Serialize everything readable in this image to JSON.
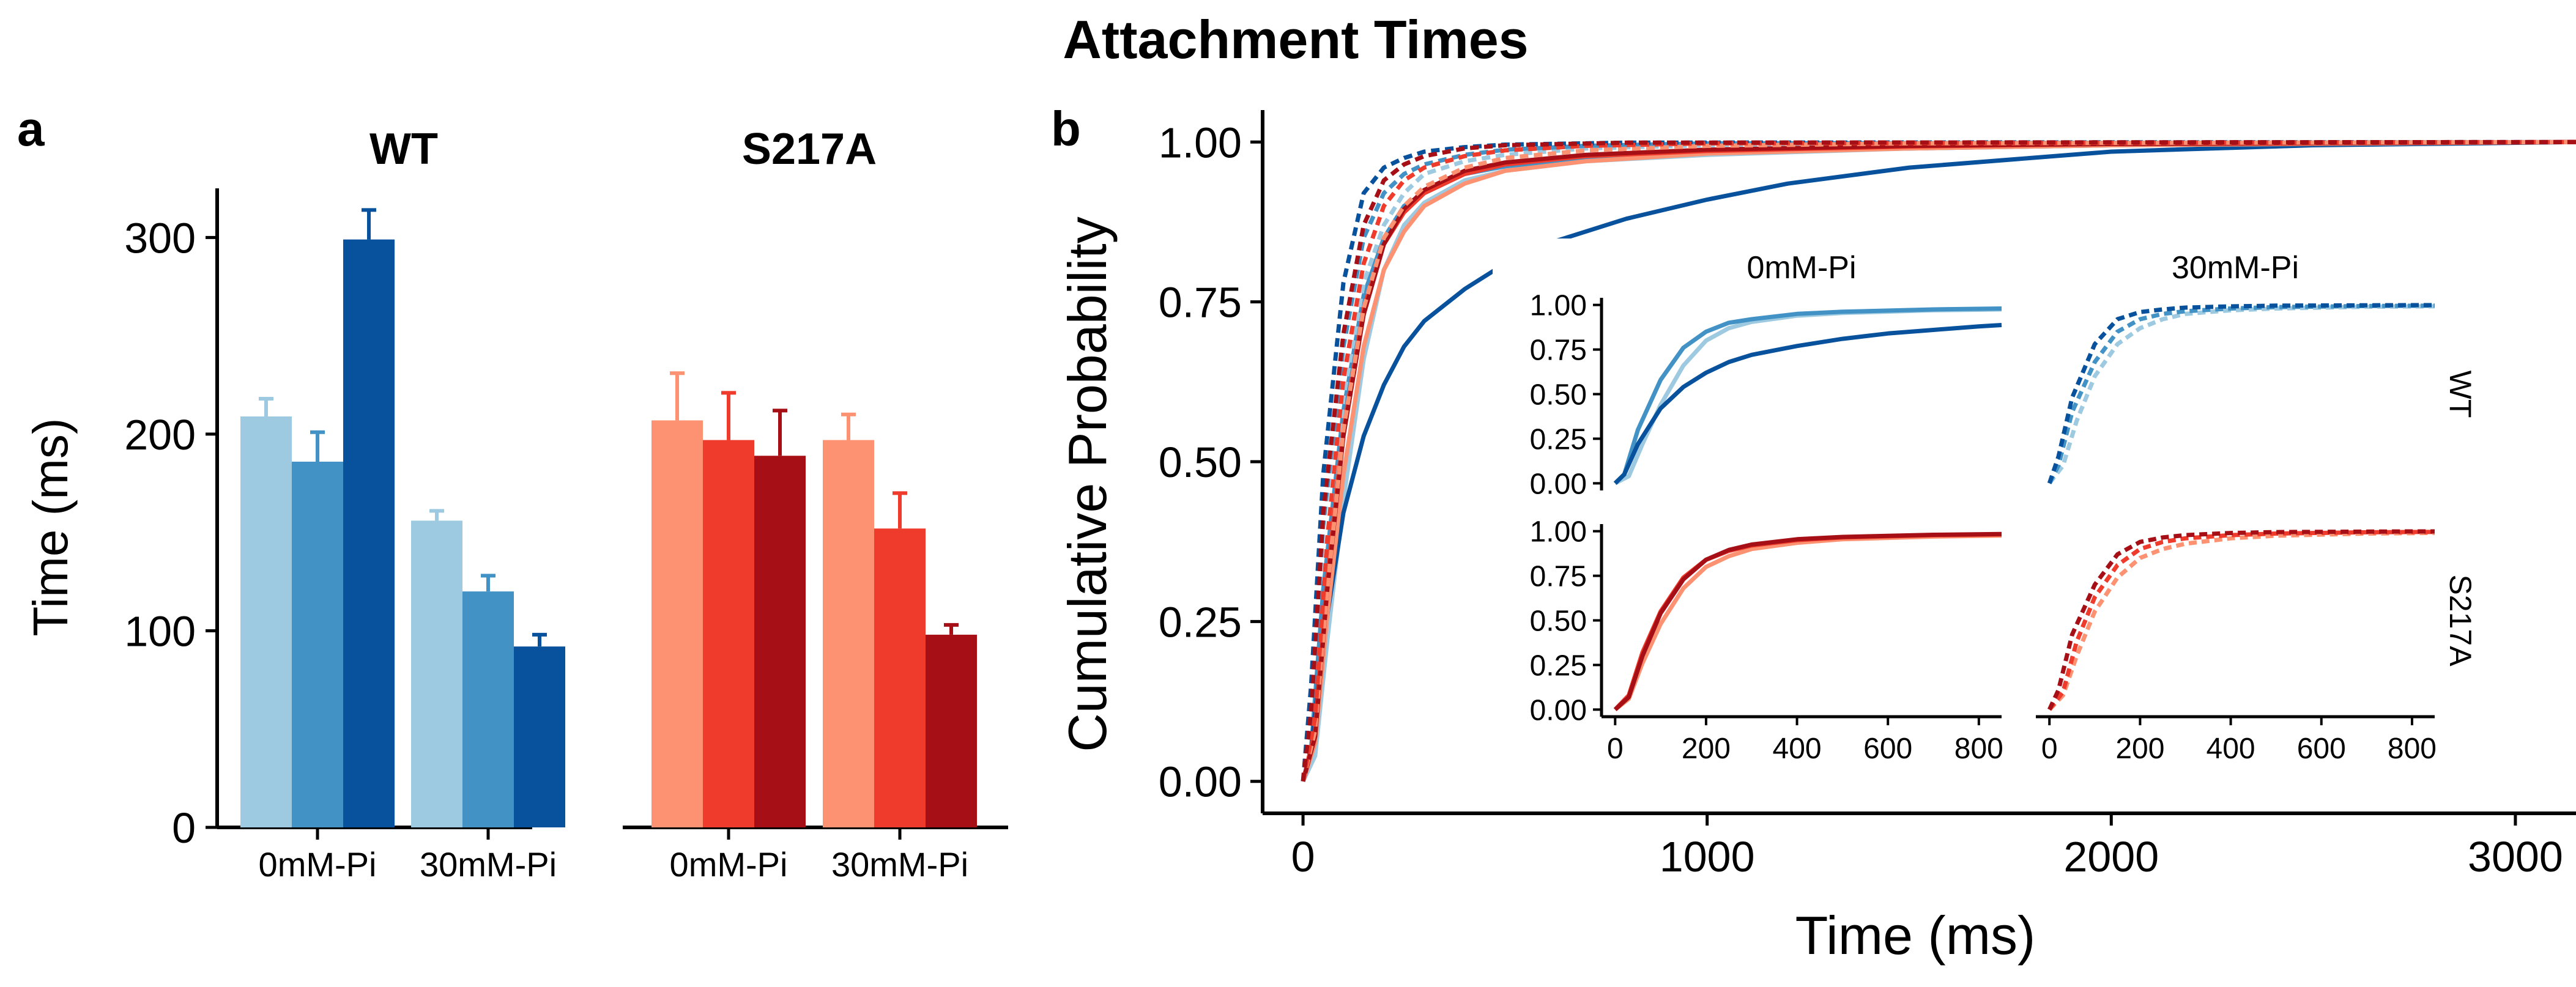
{
  "chart_data": {
    "title": "Attachment Times",
    "panels": [
      {
        "label": "a",
        "type": "bar",
        "ylabel": "Time (ms)",
        "ylim": [
          0,
          325
        ],
        "yticks": [
          0,
          100,
          200,
          300
        ],
        "facets": [
          {
            "title": "WT",
            "categories": [
              "0mM-Pi",
              "30mM-Pi"
            ],
            "bars_per_group": 3,
            "colors": [
              "#9ecae1",
              "#4292c6",
              "#08519c"
            ],
            "values": [
              [
                209,
                186,
                299
              ],
              [
                156,
                120,
                92
              ]
            ],
            "errors": [
              [
                9,
                15,
                15
              ],
              [
                5,
                8,
                6
              ]
            ]
          },
          {
            "title": "S217A",
            "categories": [
              "0mM-Pi",
              "30mM-Pi"
            ],
            "bars_per_group": 3,
            "colors": [
              "#fc9272",
              "#ef3b2c",
              "#a50f15"
            ],
            "values": [
              [
                207,
                197,
                189
              ],
              [
                197,
                152,
                98
              ]
            ],
            "errors": [
              [
                24,
                24,
                23
              ],
              [
                13,
                18,
                5
              ]
            ]
          }
        ]
      },
      {
        "label": "b",
        "type": "line",
        "xlabel": "Time (ms)",
        "ylabel": "Cumulative Probability",
        "xlim": [
          -100,
          3150
        ],
        "ylim": [
          -0.05,
          1.05
        ],
        "xticks": [
          0,
          1000,
          2000,
          3000
        ],
        "yticks": [
          0.0,
          0.25,
          0.5,
          0.75,
          1.0
        ],
        "ytick_labels": [
          "0.00",
          "0.25",
          "0.50",
          "0.75",
          "1.00"
        ],
        "series": [
          {
            "group": "WT",
            "pi": "0mM-Pi",
            "color": "#9ecae1",
            "dashed": false,
            "x": [
              0,
              30,
              60,
              100,
              150,
              200,
              250,
              300,
              400,
              500,
              700,
              1000,
              1500,
              2000,
              3150
            ],
            "y": [
              0,
              0.04,
              0.22,
              0.44,
              0.66,
              0.8,
              0.87,
              0.905,
              0.94,
              0.955,
              0.97,
              0.98,
              0.99,
              0.995,
              1
            ]
          },
          {
            "group": "WT",
            "pi": "0mM-Pi",
            "color": "#4292c6",
            "dashed": false,
            "x": [
              0,
              20,
              50,
              100,
              150,
              200,
              250,
              300,
              400,
              500,
              700,
              1000,
              1500,
              2000,
              3150
            ],
            "y": [
              0,
              0.05,
              0.3,
              0.58,
              0.76,
              0.85,
              0.9,
              0.92,
              0.95,
              0.962,
              0.975,
              0.985,
              0.99,
              0.995,
              1
            ]
          },
          {
            "group": "WT",
            "pi": "0mM-Pi",
            "color": "#08519c",
            "dashed": false,
            "x": [
              0,
              20,
              50,
              100,
              150,
              200,
              250,
              300,
              400,
              500,
              600,
              700,
              800,
              1000,
              1200,
              1500,
              1800,
              2000,
              2500,
              3150
            ],
            "y": [
              0,
              0.05,
              0.22,
              0.42,
              0.54,
              0.62,
              0.68,
              0.72,
              0.77,
              0.81,
              0.84,
              0.86,
              0.88,
              0.91,
              0.935,
              0.96,
              0.975,
              0.985,
              0.995,
              1
            ]
          },
          {
            "group": "WT",
            "pi": "30mM-Pi",
            "color": "#9ecae1",
            "dashed": true,
            "x": [
              0,
              30,
              60,
              100,
              150,
              200,
              250,
              300,
              400,
              500,
              700,
              1000,
              1500,
              3150
            ],
            "y": [
              0,
              0.1,
              0.35,
              0.6,
              0.78,
              0.87,
              0.92,
              0.95,
              0.97,
              0.98,
              0.99,
              0.995,
              0.998,
              1
            ]
          },
          {
            "group": "WT",
            "pi": "30mM-Pi",
            "color": "#4292c6",
            "dashed": true,
            "x": [
              0,
              20,
              50,
              100,
              150,
              200,
              250,
              300,
              400,
              500,
              700,
              1000,
              3150
            ],
            "y": [
              0,
              0.1,
              0.4,
              0.68,
              0.85,
              0.92,
              0.95,
              0.965,
              0.98,
              0.988,
              0.994,
              0.998,
              1
            ]
          },
          {
            "group": "WT",
            "pi": "30mM-Pi",
            "color": "#08519c",
            "dashed": true,
            "x": [
              0,
              20,
              50,
              100,
              150,
              200,
              250,
              300,
              400,
              500,
              800,
              3150
            ],
            "y": [
              0,
              0.15,
              0.48,
              0.78,
              0.92,
              0.96,
              0.975,
              0.985,
              0.992,
              0.996,
              0.999,
              1
            ]
          },
          {
            "group": "S217A",
            "pi": "0mM-Pi",
            "color": "#fc9272",
            "dashed": false,
            "x": [
              0,
              30,
              60,
              100,
              150,
              200,
              250,
              300,
              400,
              500,
              700,
              1000,
              1500,
              2000,
              3150
            ],
            "y": [
              0,
              0.06,
              0.26,
              0.48,
              0.68,
              0.8,
              0.86,
              0.9,
              0.935,
              0.955,
              0.97,
              0.982,
              0.99,
              0.995,
              1
            ]
          },
          {
            "group": "S217A",
            "pi": "0mM-Pi",
            "color": "#ef3b2c",
            "dashed": false,
            "x": [
              0,
              30,
              60,
              100,
              150,
              200,
              250,
              300,
              400,
              500,
              700,
              1000,
              1500,
              2000,
              3150
            ],
            "y": [
              0,
              0.08,
              0.32,
              0.55,
              0.74,
              0.84,
              0.89,
              0.92,
              0.95,
              0.965,
              0.978,
              0.986,
              0.993,
              0.997,
              1
            ]
          },
          {
            "group": "S217A",
            "pi": "0mM-Pi",
            "color": "#a50f15",
            "dashed": false,
            "x": [
              0,
              30,
              60,
              100,
              150,
              200,
              250,
              300,
              400,
              500,
              700,
              1000,
              1500,
              2000,
              3150
            ],
            "y": [
              0,
              0.07,
              0.3,
              0.54,
              0.73,
              0.84,
              0.895,
              0.925,
              0.955,
              0.968,
              0.98,
              0.988,
              0.994,
              0.997,
              1
            ]
          },
          {
            "group": "S217A",
            "pi": "30mM-Pi",
            "color": "#fc9272",
            "dashed": true,
            "x": [
              0,
              30,
              60,
              100,
              150,
              200,
              250,
              300,
              400,
              500,
              700,
              1000,
              1500,
              3150
            ],
            "y": [
              0,
              0.08,
              0.3,
              0.55,
              0.74,
              0.85,
              0.9,
              0.93,
              0.96,
              0.975,
              0.987,
              0.994,
              0.998,
              1
            ]
          },
          {
            "group": "S217A",
            "pi": "30mM-Pi",
            "color": "#ef3b2c",
            "dashed": true,
            "x": [
              0,
              30,
              60,
              100,
              150,
              200,
              250,
              300,
              400,
              500,
              700,
              1000,
              3150
            ],
            "y": [
              0,
              0.1,
              0.38,
              0.63,
              0.81,
              0.9,
              0.94,
              0.96,
              0.978,
              0.987,
              0.994,
              0.998,
              1
            ]
          },
          {
            "group": "S217A",
            "pi": "30mM-Pi",
            "color": "#a50f15",
            "dashed": true,
            "x": [
              0,
              20,
              50,
              100,
              150,
              200,
              250,
              300,
              400,
              500,
              800,
              3150
            ],
            "y": [
              0,
              0.11,
              0.42,
              0.7,
              0.87,
              0.94,
              0.965,
              0.978,
              0.99,
              0.995,
              0.999,
              1
            ]
          }
        ],
        "inset": {
          "col_labels": [
            "0mM-Pi",
            "30mM-Pi"
          ],
          "row_labels": [
            "WT",
            "S217A"
          ],
          "xlim": [
            -30,
            850
          ],
          "ylim": [
            -0.04,
            1.04
          ],
          "xticks": [
            0,
            200,
            400,
            600,
            800
          ],
          "yticks": [
            0,
            0.25,
            0.5,
            0.75,
            1
          ],
          "ytick_labels": [
            "0.00",
            "0.25",
            "0.50",
            "0.75",
            "1.00"
          ]
        }
      }
    ]
  }
}
